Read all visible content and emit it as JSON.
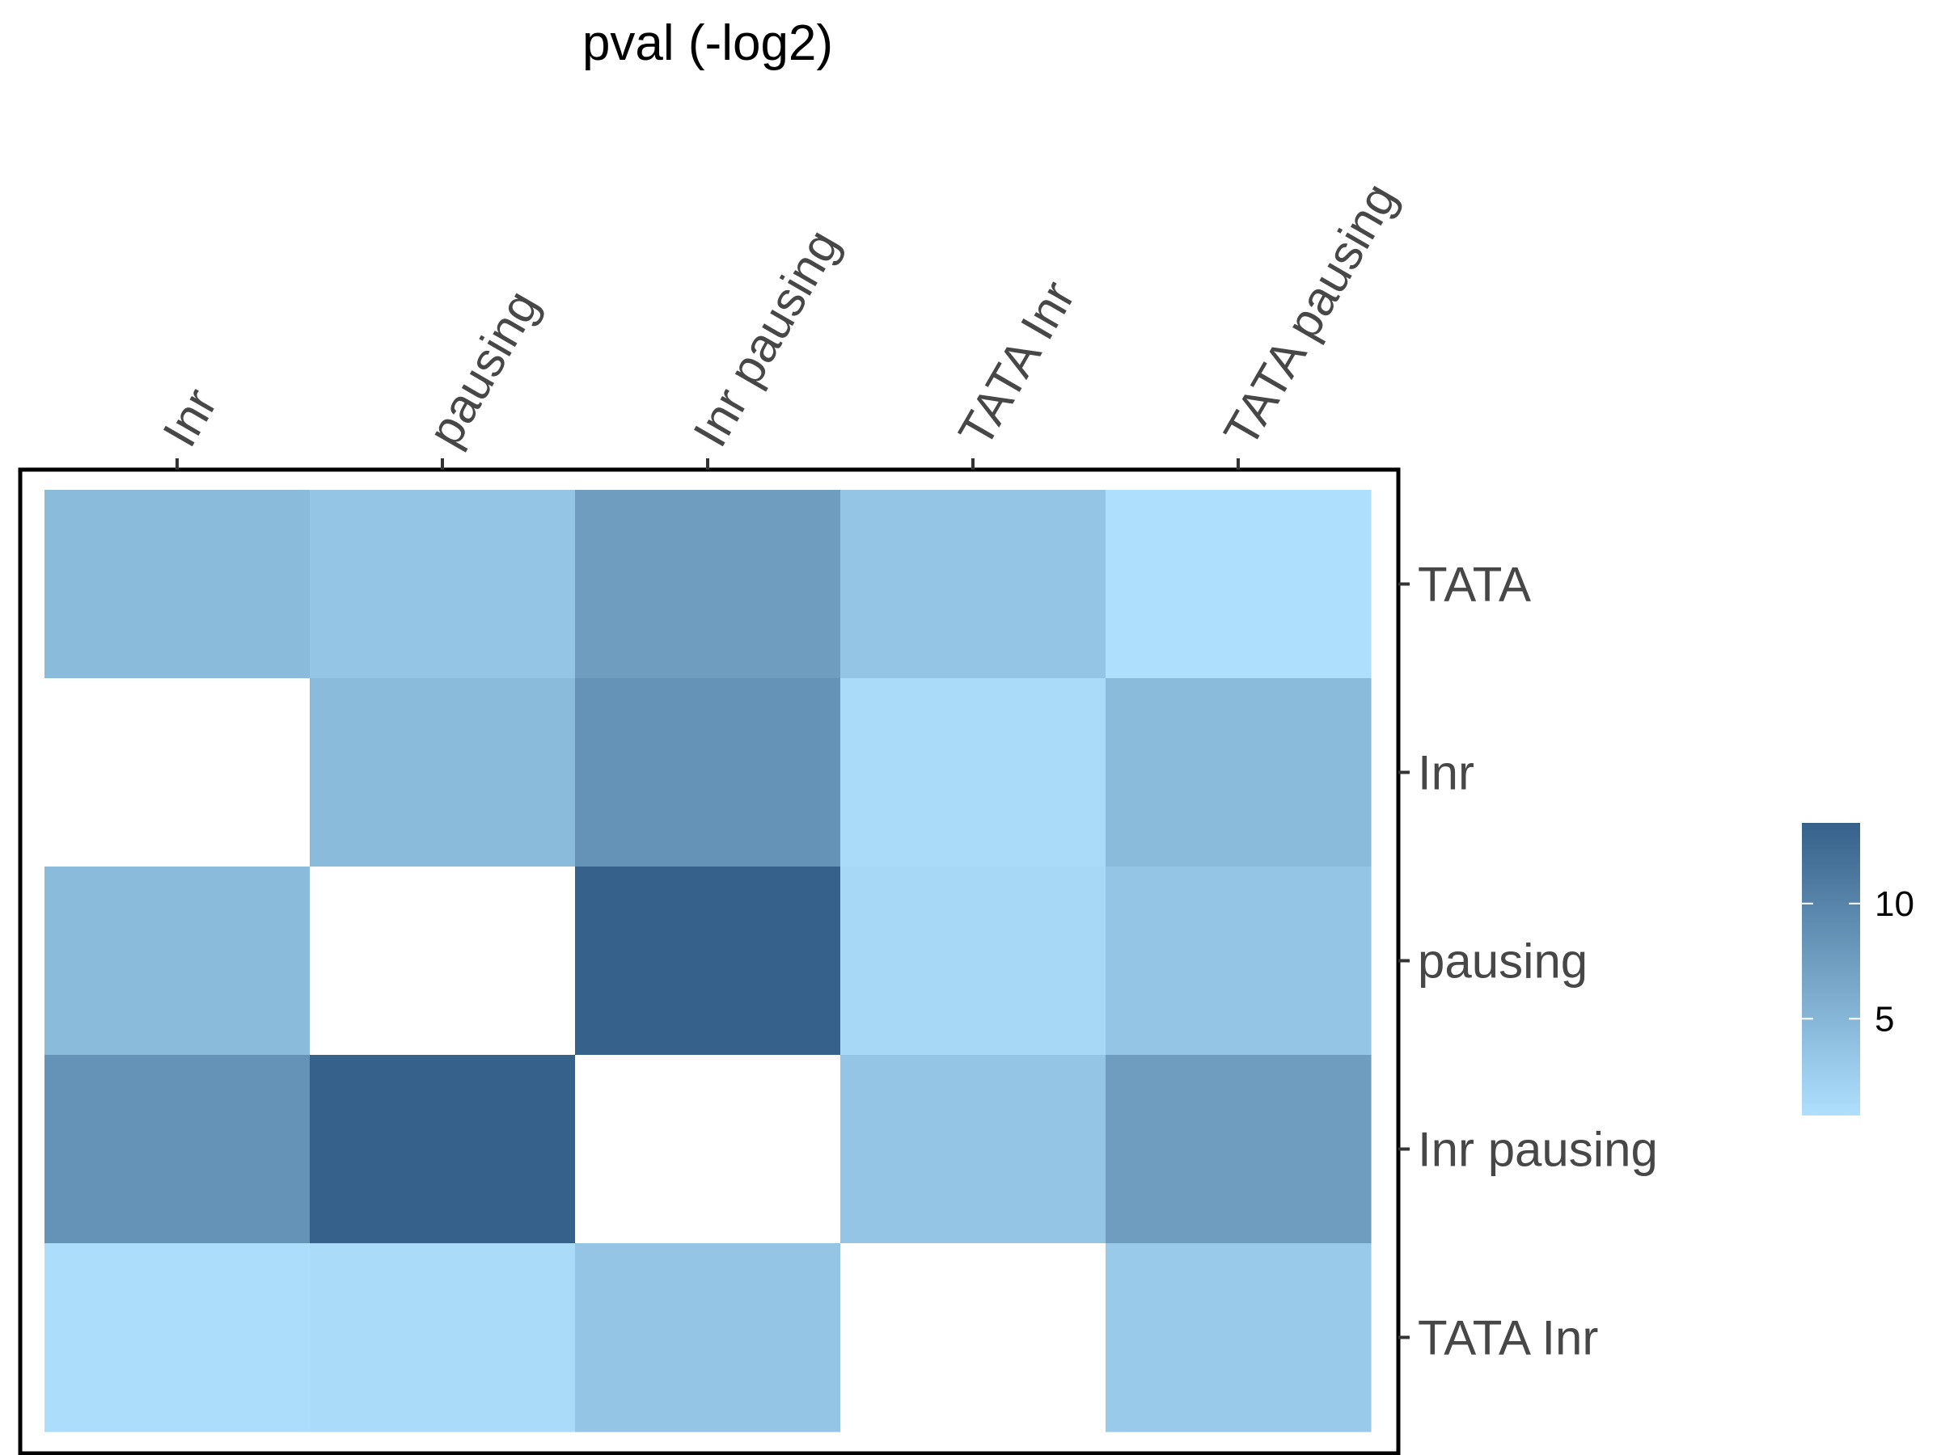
{
  "chart_data": {
    "type": "heatmap",
    "title": "pval (-log2)",
    "x_categories": [
      "Inr",
      "pausing",
      "Inr pausing",
      "TATA Inr",
      "TATA pausing"
    ],
    "y_categories": [
      "TATA",
      "Inr",
      "pausing",
      "Inr pausing",
      "TATA Inr"
    ],
    "values": [
      [
        4.5,
        3.5,
        7.5,
        3.5,
        0.8
      ],
      [
        null,
        4.5,
        8.5,
        1.2,
        4.5
      ],
      [
        4.5,
        null,
        13.5,
        1.5,
        3.5
      ],
      [
        8.5,
        13.5,
        null,
        3.5,
        7.5
      ],
      [
        1.0,
        1.2,
        3.5,
        null,
        3.0
      ]
    ],
    "color_scale": {
      "low_color": "#aee0fd",
      "high_color": "#36618a",
      "min": 0.8,
      "max": 13.5,
      "legend_ticks": [
        5,
        10
      ],
      "missing_color": "#ffffff"
    },
    "x_axis_position": "top",
    "y_axis_position": "right",
    "grid": false,
    "legend_position": "right"
  }
}
